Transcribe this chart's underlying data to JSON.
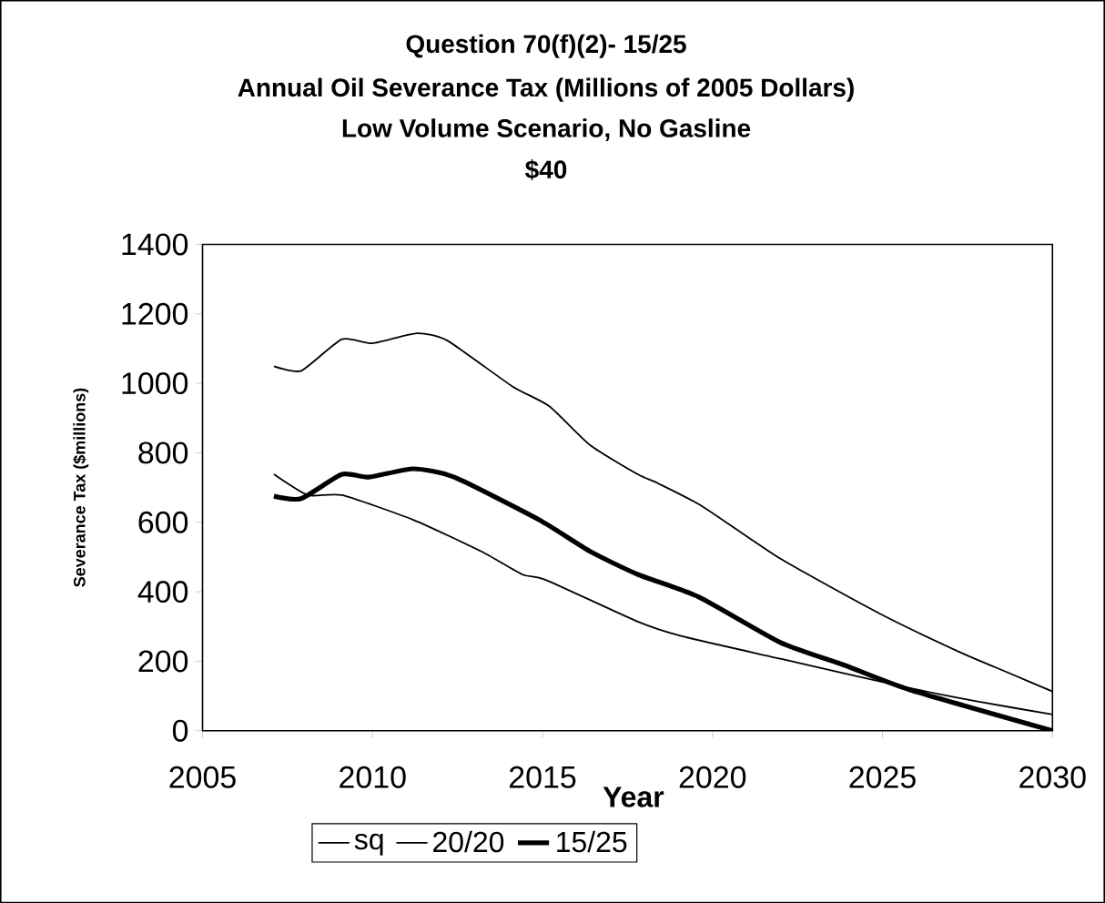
{
  "chart_data": {
    "type": "line",
    "title": "Question 70(f)(2)- 15/25",
    "subtitle": "Annual Oil Severance Tax (Millions of 2005 Dollars)",
    "annotations": [
      "Low Volume Scenario, No Gasline",
      "$40"
    ],
    "xlabel": "Year",
    "ylabel": "Severance Tax ($millions)",
    "xlim": [
      2005,
      2030
    ],
    "xticks": [
      2005,
      2010,
      2015,
      2020,
      2025,
      2030
    ],
    "ylim": [
      0,
      1400
    ],
    "yticks": [
      0,
      200,
      400,
      600,
      800,
      1000,
      1200,
      1400
    ],
    "grid": false,
    "legend": "bottom",
    "marker": "none",
    "line_style": "solid",
    "series": [
      {
        "name": "sq",
        "color": "#000000",
        "x": [
          2007.1,
          2007.9,
          2009.1,
          2010.0,
          2011.3,
          2012.2,
          2014.1,
          2015.2,
          2016.4,
          2017.8,
          2018.4,
          2019.7,
          2022.0,
          2024.9,
          2027.3,
          2028.7,
          2030.0
        ],
        "values": [
          1049,
          1036,
          1127,
          1115,
          1144,
          1123,
          992,
          934,
          822,
          738,
          712,
          646,
          495,
          338,
          225,
          167,
          113
        ]
      },
      {
        "name": "20/20",
        "color": "#000000",
        "x": [
          2007.1,
          2008.1,
          2009.1,
          2011.2,
          2013.2,
          2014.4,
          2015.1,
          2017.8,
          2019.1,
          2022.0,
          2025.4,
          2027.8,
          2030.0
        ],
        "values": [
          738,
          678,
          678,
          607,
          516,
          450,
          434,
          314,
          272,
          207,
          131,
          84,
          47
        ]
      },
      {
        "name": "15/25",
        "color": "#000000",
        "x": [
          2007.1,
          2007.9,
          2009.1,
          2009.9,
          2011.2,
          2012.4,
          2014.9,
          2016.4,
          2017.8,
          2019.6,
          2022.0,
          2023.9,
          2025.8,
          2030.0
        ],
        "values": [
          675,
          668,
          738,
          730,
          754,
          730,
          607,
          516,
          450,
          385,
          254,
          188,
          118,
          0
        ]
      }
    ]
  }
}
